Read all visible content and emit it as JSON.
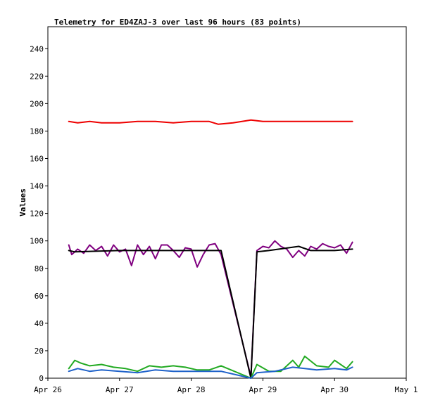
{
  "chart_data": {
    "type": "line",
    "title": "Telemetry for ED4ZAJ-3 over last 96 hours (83 points)",
    "xlabel": "",
    "ylabel": "Values",
    "xlim": [
      "2024-04-26T00:00",
      "2024-05-01T00:00"
    ],
    "ylim": [
      0,
      256
    ],
    "x_ticks": [
      "Apr 26",
      "Apr 27",
      "Apr 28",
      "Apr 29",
      "Apr 30",
      "May 1"
    ],
    "y_ticks": [
      0,
      20,
      40,
      60,
      80,
      100,
      120,
      140,
      160,
      180,
      200,
      220,
      240
    ],
    "grid": false,
    "legend": "none",
    "series": [
      {
        "color": "#ee0000",
        "x": [
          "2024-04-26T07:00",
          "2024-04-26T10:00",
          "2024-04-26T14:00",
          "2024-04-26T18:00",
          "2024-04-27T00:00",
          "2024-04-27T06:00",
          "2024-04-27T12:00",
          "2024-04-27T18:00",
          "2024-04-28T00:00",
          "2024-04-28T06:00",
          "2024-04-28T09:00",
          "2024-04-28T14:00",
          "2024-04-28T20:00",
          "2024-04-29T00:00",
          "2024-04-29T06:00",
          "2024-04-29T12:00",
          "2024-04-29T18:00",
          "2024-04-30T00:00",
          "2024-04-30T06:00"
        ],
        "y": [
          187,
          186,
          187,
          186,
          186,
          187,
          187,
          186,
          187,
          187,
          185,
          186,
          188,
          187,
          187,
          187,
          187,
          187,
          187
        ]
      },
      {
        "color": "#800080",
        "x": [
          "2024-04-26T07:00",
          "2024-04-26T08:00",
          "2024-04-26T10:00",
          "2024-04-26T12:00",
          "2024-04-26T14:00",
          "2024-04-26T16:00",
          "2024-04-26T18:00",
          "2024-04-26T20:00",
          "2024-04-26T22:00",
          "2024-04-27T00:00",
          "2024-04-27T02:00",
          "2024-04-27T04:00",
          "2024-04-27T06:00",
          "2024-04-27T08:00",
          "2024-04-27T10:00",
          "2024-04-27T12:00",
          "2024-04-27T14:00",
          "2024-04-27T16:00",
          "2024-04-27T18:00",
          "2024-04-27T20:00",
          "2024-04-27T22:00",
          "2024-04-28T00:00",
          "2024-04-28T02:00",
          "2024-04-28T04:00",
          "2024-04-28T06:00",
          "2024-04-28T08:00",
          "2024-04-28T10:00",
          "2024-04-28T20:00",
          "2024-04-28T22:00",
          "2024-04-29T00:00",
          "2024-04-29T02:00",
          "2024-04-29T04:00",
          "2024-04-29T06:00",
          "2024-04-29T08:00",
          "2024-04-29T10:00",
          "2024-04-29T12:00",
          "2024-04-29T14:00",
          "2024-04-29T16:00",
          "2024-04-29T18:00",
          "2024-04-29T20:00",
          "2024-04-29T22:00",
          "2024-04-30T00:00",
          "2024-04-30T02:00",
          "2024-04-30T04:00",
          "2024-04-30T06:00"
        ],
        "y": [
          97,
          90,
          94,
          91,
          97,
          93,
          96,
          89,
          97,
          92,
          94,
          82,
          97,
          90,
          96,
          87,
          97,
          97,
          93,
          88,
          95,
          94,
          81,
          90,
          97,
          98,
          90,
          1,
          93,
          96,
          95,
          100,
          96,
          94,
          88,
          93,
          89,
          96,
          94,
          98,
          96,
          95,
          97,
          91,
          99
        ]
      },
      {
        "color": "#000000",
        "x": [
          "2024-04-26T07:00",
          "2024-04-26T09:00",
          "2024-04-27T00:00",
          "2024-04-28T00:00",
          "2024-04-28T10:00",
          "2024-04-28T20:00",
          "2024-04-28T22:00",
          "2024-04-29T02:00",
          "2024-04-29T12:00",
          "2024-04-29T16:00",
          "2024-04-30T00:00",
          "2024-04-30T06:00"
        ],
        "y": [
          93,
          92,
          93,
          93,
          93,
          0,
          92,
          93,
          96,
          93,
          93,
          94
        ]
      },
      {
        "color": "#22aa22",
        "x": [
          "2024-04-26T07:00",
          "2024-04-26T09:00",
          "2024-04-26T11:00",
          "2024-04-26T14:00",
          "2024-04-26T18:00",
          "2024-04-26T22:00",
          "2024-04-27T02:00",
          "2024-04-27T06:00",
          "2024-04-27T10:00",
          "2024-04-27T14:00",
          "2024-04-27T18:00",
          "2024-04-27T22:00",
          "2024-04-28T02:00",
          "2024-04-28T06:00",
          "2024-04-28T10:00",
          "2024-04-28T20:00",
          "2024-04-28T22:00",
          "2024-04-29T02:00",
          "2024-04-29T06:00",
          "2024-04-29T10:00",
          "2024-04-29T12:00",
          "2024-04-29T14:00",
          "2024-04-29T18:00",
          "2024-04-29T22:00",
          "2024-04-30T00:00",
          "2024-04-30T04:00",
          "2024-04-30T06:00"
        ],
        "y": [
          7,
          13,
          11,
          9,
          10,
          8,
          7,
          5,
          9,
          8,
          9,
          8,
          6,
          6,
          9,
          0,
          10,
          5,
          5,
          13,
          8,
          16,
          9,
          8,
          13,
          7,
          12
        ]
      },
      {
        "color": "#1f62c9",
        "x": [
          "2024-04-26T07:00",
          "2024-04-26T10:00",
          "2024-04-26T14:00",
          "2024-04-26T18:00",
          "2024-04-27T00:00",
          "2024-04-27T06:00",
          "2024-04-27T12:00",
          "2024-04-27T18:00",
          "2024-04-28T00:00",
          "2024-04-28T06:00",
          "2024-04-28T10:00",
          "2024-04-28T20:00",
          "2024-04-28T22:00",
          "2024-04-29T04:00",
          "2024-04-29T10:00",
          "2024-04-29T14:00",
          "2024-04-29T18:00",
          "2024-04-30T00:00",
          "2024-04-30T04:00",
          "2024-04-30T06:00"
        ],
        "y": [
          5,
          7,
          5,
          6,
          5,
          4,
          6,
          5,
          5,
          5,
          5,
          0,
          4,
          5,
          8,
          7,
          6,
          7,
          6,
          8
        ]
      }
    ]
  }
}
